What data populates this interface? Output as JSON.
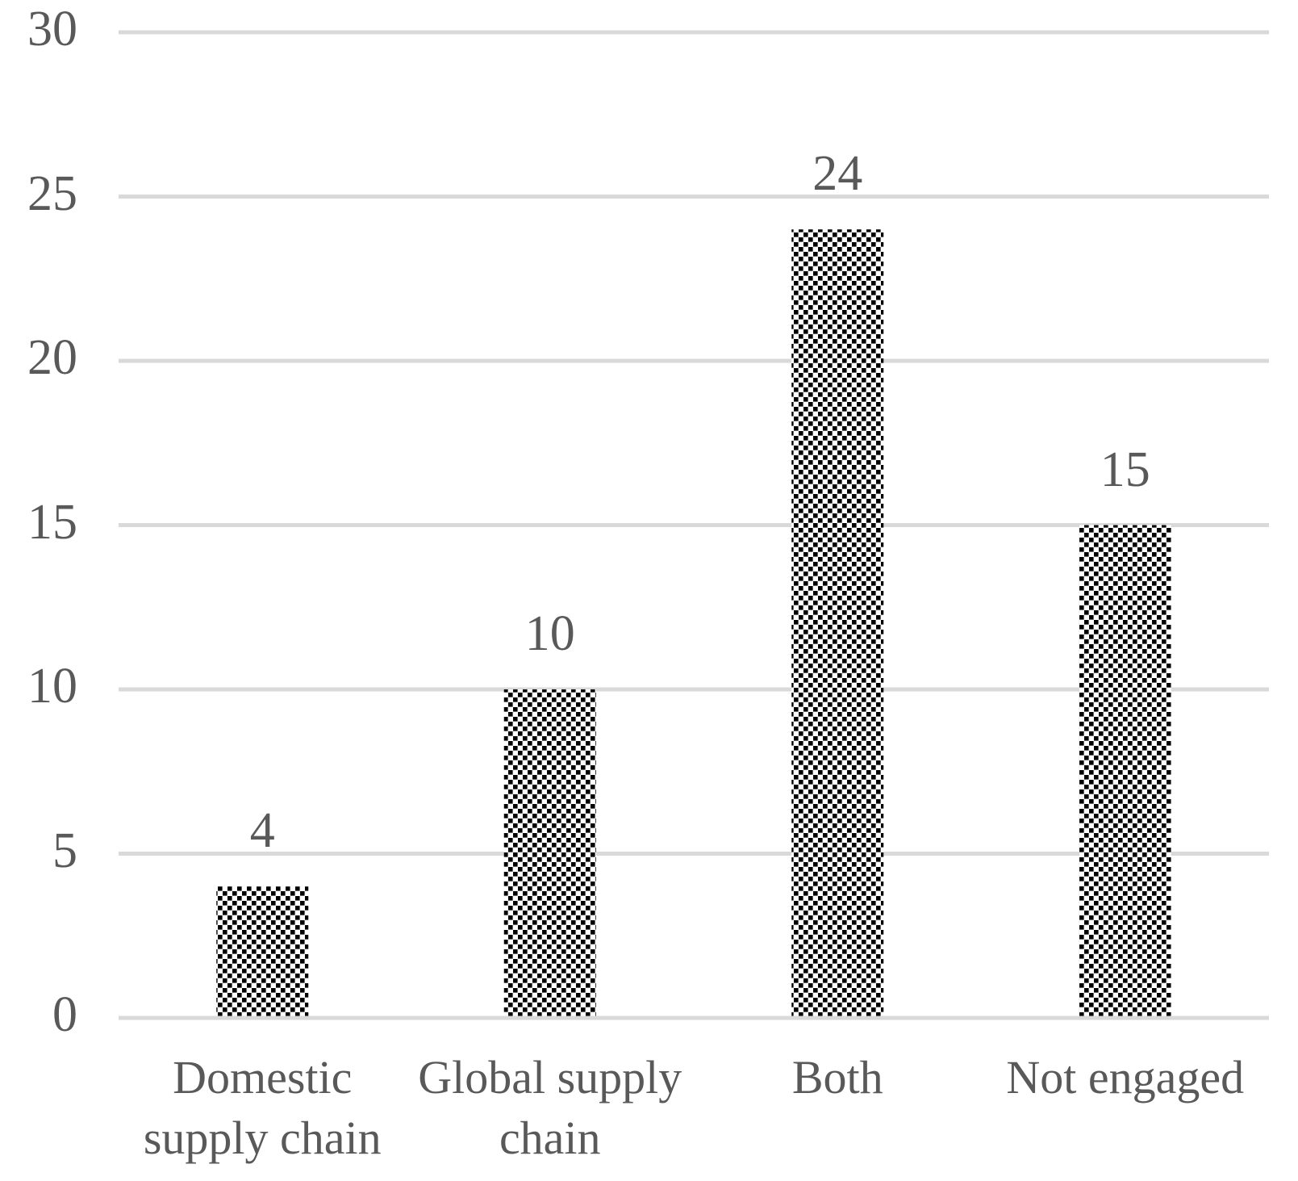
{
  "chart_data": {
    "type": "bar",
    "title": "",
    "xlabel": "",
    "ylabel": "",
    "categories": [
      "Domestic supply chain",
      "Global supply chain",
      "Both",
      "Not engaged"
    ],
    "values": [
      4,
      10,
      24,
      15
    ],
    "data_labels": [
      "4",
      "10",
      "24",
      "15"
    ],
    "yticks": [
      "0",
      "5",
      "10",
      "15",
      "20",
      "25",
      "30"
    ],
    "ytick_values": [
      0,
      5,
      10,
      15,
      20,
      25,
      30
    ],
    "ylim": [
      0,
      30
    ],
    "grid": true,
    "legend": false,
    "bar_fill_style": "dotted-diamond-pattern",
    "colors": {
      "pattern_foreground": "#000000",
      "pattern_background": "#ffffff",
      "gridline": "#d9d9d9",
      "text": "#595959",
      "page_background": "#ffffff"
    }
  }
}
